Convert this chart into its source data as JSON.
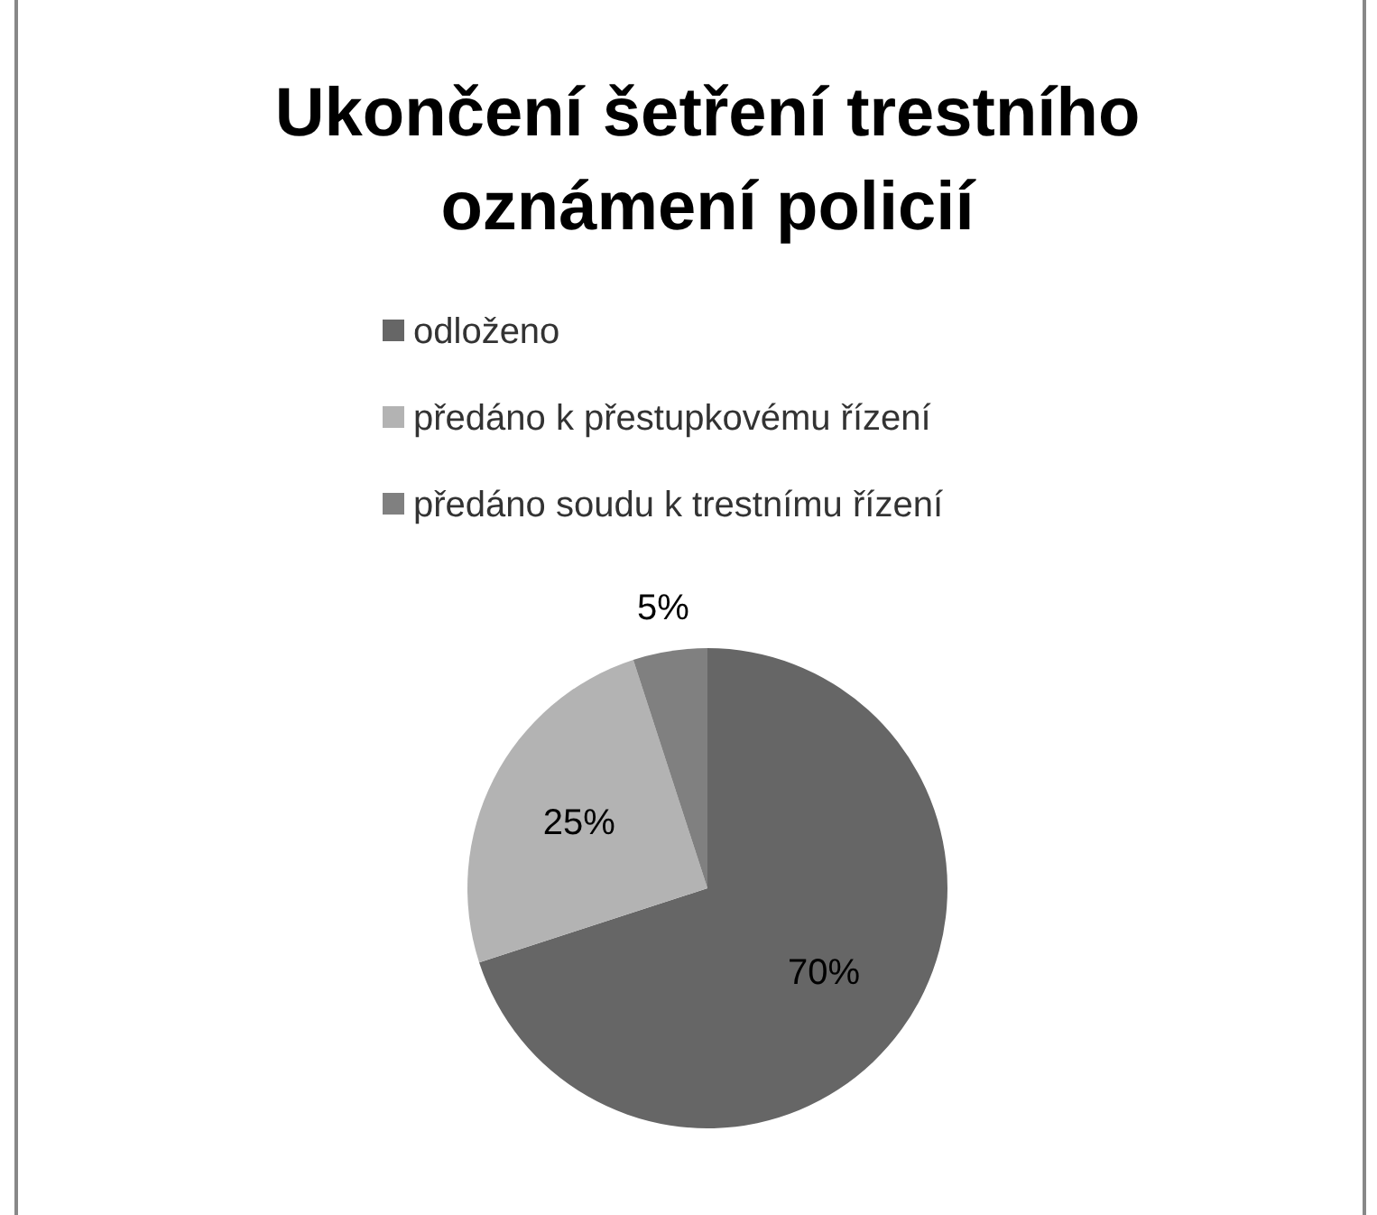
{
  "chart_data": {
    "type": "pie",
    "title": "Ukončení šetření trestního oznámení policií",
    "categories": [
      "odloženo",
      "předáno k přestupkovému řízení",
      "předáno soudu k trestnímu řízení"
    ],
    "values": [
      70,
      25,
      5
    ],
    "colors": [
      "#666666",
      "#b3b3b3",
      "#808080"
    ],
    "value_labels": [
      "70%",
      "25%",
      "5%"
    ],
    "legend": "top"
  }
}
